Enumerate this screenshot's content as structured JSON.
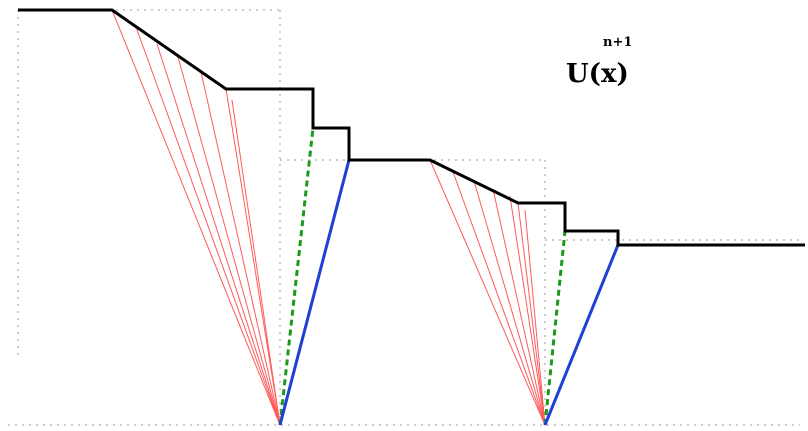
{
  "label": {
    "main": "U(x)",
    "superscript": "n+1"
  },
  "colors": {
    "profile": "#000000",
    "fan": "#ff5a5a",
    "dashed": "#1a9a1a",
    "shock": "#1f3fd6",
    "grid": "#9a9a9a",
    "background": "#ffffff"
  },
  "legend": []
}
